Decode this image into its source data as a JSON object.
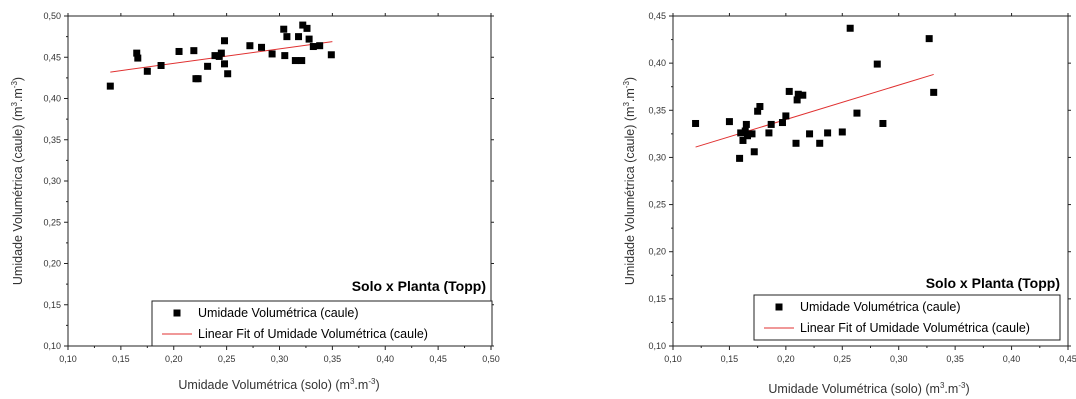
{
  "chart_data": [
    {
      "type": "scatter",
      "title": "",
      "annotation": "Solo x Planta (Topp)",
      "xlabel": "Umidade Volumétrica (solo) (m³.m⁻³)",
      "ylabel": "Umidade Volumétrica (caule) (m³.m⁻³)",
      "xlim": [
        0.1,
        0.5
      ],
      "ylim": [
        0.1,
        0.5
      ],
      "xticks": [
        "0,10",
        "0,15",
        "0,20",
        "0,25",
        "0,30",
        "0,35",
        "0,40",
        "0,45",
        "0,50"
      ],
      "yticks": [
        "0,10",
        "0,15",
        "0,20",
        "0,25",
        "0,30",
        "0,35",
        "0,40",
        "0,45",
        "0,50"
      ],
      "grid": false,
      "legend_position": "bottom-right",
      "series": [
        {
          "name": "Umidade Volumétrica (caule)",
          "kind": "points",
          "color": "#000000",
          "points": [
            [
              0.14,
              0.415
            ],
            [
              0.165,
              0.455
            ],
            [
              0.166,
              0.449
            ],
            [
              0.175,
              0.433
            ],
            [
              0.188,
              0.44
            ],
            [
              0.205,
              0.457
            ],
            [
              0.219,
              0.458
            ],
            [
              0.221,
              0.424
            ],
            [
              0.223,
              0.424
            ],
            [
              0.232,
              0.439
            ],
            [
              0.239,
              0.452
            ],
            [
              0.243,
              0.451
            ],
            [
              0.245,
              0.455
            ],
            [
              0.248,
              0.47
            ],
            [
              0.248,
              0.442
            ],
            [
              0.251,
              0.43
            ],
            [
              0.272,
              0.464
            ],
            [
              0.283,
              0.462
            ],
            [
              0.293,
              0.454
            ],
            [
              0.304,
              0.484
            ],
            [
              0.305,
              0.452
            ],
            [
              0.307,
              0.475
            ],
            [
              0.315,
              0.446
            ],
            [
              0.318,
              0.475
            ],
            [
              0.321,
              0.446
            ],
            [
              0.322,
              0.489
            ],
            [
              0.326,
              0.485
            ],
            [
              0.328,
              0.472
            ],
            [
              0.332,
              0.463
            ],
            [
              0.338,
              0.464
            ],
            [
              0.349,
              0.453
            ]
          ]
        },
        {
          "name": "Linear Fit of Umidade Volumétrica (caule)",
          "kind": "line",
          "color": "#e03030",
          "points": [
            [
              0.14,
              0.432
            ],
            [
              0.35,
              0.469
            ]
          ]
        }
      ]
    },
    {
      "type": "scatter",
      "title": "",
      "annotation": "Solo x Planta (Topp)",
      "xlabel": "Umidade Volumétrica (solo) (m³.m⁻³)",
      "ylabel": "Umidade Volumétrica (caule) (m³.m⁻³)",
      "xlim": [
        0.1,
        0.45
      ],
      "ylim": [
        0.1,
        0.45
      ],
      "xticks": [
        "0,10",
        "0,15",
        "0,20",
        "0,25",
        "0,30",
        "0,35",
        "0,40",
        "0,45"
      ],
      "yticks": [
        "0,10",
        "0,15",
        "0,20",
        "0,25",
        "0,30",
        "0,35",
        "0,40",
        "0,45"
      ],
      "grid": false,
      "legend_position": "bottom-right",
      "series": [
        {
          "name": "Umidade Volumétrica (caule)",
          "kind": "points",
          "color": "#000000",
          "points": [
            [
              0.12,
              0.336
            ],
            [
              0.15,
              0.338
            ],
            [
              0.159,
              0.299
            ],
            [
              0.16,
              0.326
            ],
            [
              0.162,
              0.318
            ],
            [
              0.164,
              0.328
            ],
            [
              0.165,
              0.335
            ],
            [
              0.166,
              0.323
            ],
            [
              0.17,
              0.325
            ],
            [
              0.172,
              0.306
            ],
            [
              0.175,
              0.349
            ],
            [
              0.177,
              0.354
            ],
            [
              0.185,
              0.326
            ],
            [
              0.187,
              0.335
            ],
            [
              0.197,
              0.337
            ],
            [
              0.2,
              0.344
            ],
            [
              0.203,
              0.37
            ],
            [
              0.209,
              0.315
            ],
            [
              0.21,
              0.361
            ],
            [
              0.211,
              0.367
            ],
            [
              0.215,
              0.366
            ],
            [
              0.221,
              0.325
            ],
            [
              0.23,
              0.315
            ],
            [
              0.237,
              0.326
            ],
            [
              0.25,
              0.327
            ],
            [
              0.257,
              0.437
            ],
            [
              0.263,
              0.347
            ],
            [
              0.281,
              0.399
            ],
            [
              0.286,
              0.336
            ],
            [
              0.327,
              0.426
            ],
            [
              0.331,
              0.369
            ]
          ]
        },
        {
          "name": "Linear Fit of Umidade Volumétrica (caule)",
          "kind": "line",
          "color": "#e03030",
          "points": [
            [
              0.12,
              0.311
            ],
            [
              0.331,
              0.388
            ]
          ]
        }
      ]
    }
  ]
}
